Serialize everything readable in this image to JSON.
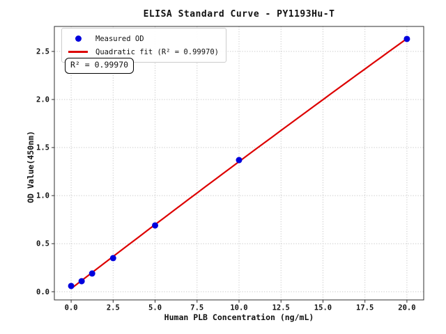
{
  "chart_data": {
    "type": "scatter",
    "title": "ELISA Standard Curve - PY1193Hu-T",
    "xlabel": "Human PLB Concentration (ng/mL)",
    "ylabel": "OD Value(450nm)",
    "xlim": [
      -1,
      21
    ],
    "ylim": [
      -0.085,
      2.76
    ],
    "grid": true,
    "legend_position": "upper left",
    "xticks": {
      "values": [
        0,
        2.5,
        5,
        7.5,
        10,
        12.5,
        15,
        17.5,
        20
      ],
      "labels": [
        "0.0",
        "2.5",
        "5.0",
        "7.5",
        "10.0",
        "12.5",
        "15.0",
        "17.5",
        "20.0"
      ]
    },
    "yticks": {
      "values": [
        0,
        0.5,
        1,
        1.5,
        2,
        2.5
      ],
      "labels": [
        "0.0",
        "0.5",
        "1.0",
        "1.5",
        "2.0",
        "2.5"
      ]
    },
    "series": [
      {
        "name": "Measured OD",
        "plot_type": "scatter",
        "marker": "circle",
        "color": "#0000dd",
        "x": [
          0,
          0.625,
          1.25,
          2.5,
          5,
          10,
          20
        ],
        "y": [
          0.06,
          0.11,
          0.19,
          0.35,
          0.69,
          1.37,
          2.63
        ]
      },
      {
        "name": "Quadratic fit (R² = 0.99970)",
        "plot_type": "line",
        "fit": "quadratic",
        "color": "#dd0000",
        "r_squared": 0.9997,
        "x_range": [
          0,
          20
        ]
      }
    ],
    "annotation": {
      "text": "R² = 0.99970"
    }
  },
  "legend": {
    "items": [
      {
        "label": "Measured OD",
        "marker": "dot",
        "color": "#0000dd"
      },
      {
        "label": "Quadratic fit (R² = 0.99970)",
        "marker": "line",
        "color": "#dd0000"
      }
    ]
  },
  "style": {
    "grid_color": "#c9c9c9",
    "spine_color": "#2f2f2f",
    "background": "#ffffff"
  }
}
